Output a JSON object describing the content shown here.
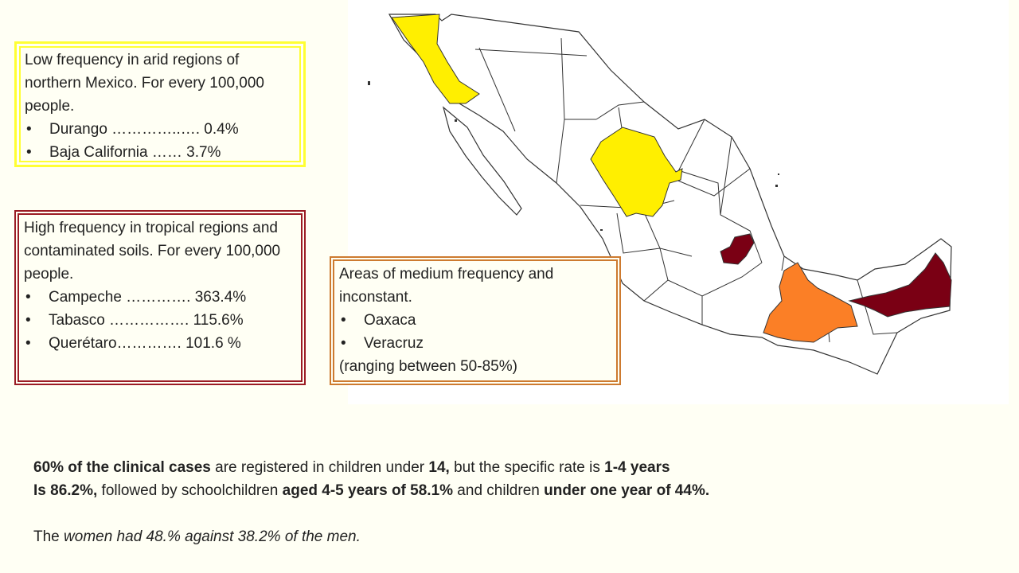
{
  "colors": {
    "background": "#fffff4",
    "low_region": "#ffef00",
    "high_region": "#7a0014",
    "medium_region": "#fb7f26",
    "low_box_border": "#ffff33",
    "high_box_border": "#9b1c24",
    "medium_box_border": "#cd7a2f"
  },
  "map": {
    "low_regions": [
      "Durango",
      "Baja California"
    ],
    "high_regions": [
      "Campeche",
      "Tabasco",
      "Querétaro"
    ],
    "medium_regions": [
      "Oaxaca",
      "Veracruz"
    ]
  },
  "low_box": {
    "intro": "Low frequency in arid regions of northern Mexico. For every 100,000 people.",
    "items": [
      "Durango …………..…. 0.4%",
      "Baja California …… 3.7%"
    ]
  },
  "high_box": {
    "intro": "High frequency in tropical regions and contaminated soils. For every 100,000 people.",
    "items": [
      "Campeche …………. 363.4%",
      "Tabasco ……………. 115.6%",
      "Querétaro…………. 101.6 %"
    ]
  },
  "medium_box": {
    "intro": "Areas of medium frequency and inconstant.",
    "items": [
      "Oaxaca",
      "Veracruz"
    ],
    "tail": "(ranging between 50-85%)"
  },
  "summary": {
    "l1_b1": "60% of the clinical cases",
    "l1_t1": " are registered in children under ",
    "l1_b2": "14,",
    "l1_t2": " but the specific rate is ",
    "l1_b3": "1-4 years",
    "l2_b1": "Is 86.2%,",
    "l2_t1": " followed by schoolchildren ",
    "l2_b2": "aged 4-5 years of 58.1%",
    "l2_t2": " and children ",
    "l2_b3": "under one year of 44%.",
    "l3_t1": "The ",
    "l3_i1": "women had 48.% against 38.2% of the men."
  }
}
